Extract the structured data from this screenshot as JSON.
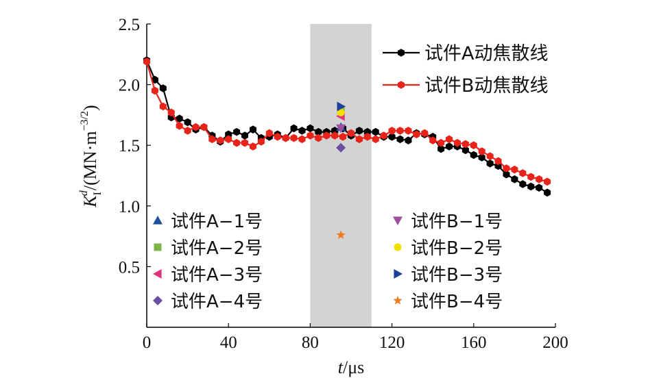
{
  "chart_data": {
    "type": "line",
    "xlabel_italic": "t",
    "xlabel_unit": "/μs",
    "ylabel_main": "K",
    "ylabel_sub": "I",
    "ylabel_sup": "d",
    "ylabel_unit_pre": "/(MN·m",
    "ylabel_unit_exp": "−3/2",
    "ylabel_unit_post": ")",
    "xlim": [
      0,
      200
    ],
    "ylim": [
      0,
      2.5
    ],
    "x_ticks": [
      0,
      40,
      80,
      120,
      160,
      200
    ],
    "y_ticks": [
      0.5,
      1.0,
      1.5,
      2.0,
      2.5
    ],
    "x_tick_labels": [
      "0",
      "40",
      "80",
      "120",
      "160",
      "200"
    ],
    "y_tick_labels": [
      "0.5",
      "1.0",
      "1.5",
      "2.0",
      "2.5"
    ],
    "shaded_band": {
      "x_start": 80,
      "x_end": 110,
      "color": "#d3d3d3"
    },
    "series": [
      {
        "name": "试件A动焦散线",
        "color": "#000000",
        "marker": "hexagon",
        "x": [
          0,
          4,
          8,
          12,
          16,
          20,
          24,
          28,
          32,
          36,
          40,
          44,
          48,
          52,
          56,
          60,
          64,
          68,
          72,
          76,
          80,
          84,
          88,
          92,
          96,
          100,
          104,
          108,
          112,
          116,
          120,
          124,
          128,
          132,
          136,
          140,
          144,
          148,
          152,
          156,
          160,
          164,
          168,
          172,
          176,
          180,
          184,
          188,
          192,
          196
        ],
        "y": [
          2.2,
          2.04,
          1.97,
          1.73,
          1.72,
          1.69,
          1.63,
          1.65,
          1.58,
          1.53,
          1.59,
          1.61,
          1.58,
          1.63,
          1.56,
          1.57,
          1.59,
          1.56,
          1.64,
          1.62,
          1.64,
          1.61,
          1.61,
          1.62,
          1.64,
          1.58,
          1.62,
          1.61,
          1.61,
          1.57,
          1.57,
          1.55,
          1.54,
          1.6,
          1.59,
          1.57,
          1.47,
          1.49,
          1.49,
          1.46,
          1.42,
          1.4,
          1.35,
          1.33,
          1.26,
          1.22,
          1.18,
          1.16,
          1.15,
          1.11
        ]
      },
      {
        "name": "试件B动焦散线",
        "color": "#e8231a",
        "marker": "hexagon",
        "x": [
          0,
          4,
          8,
          12,
          16,
          20,
          24,
          28,
          32,
          36,
          40,
          44,
          48,
          52,
          56,
          60,
          64,
          68,
          72,
          76,
          80,
          84,
          88,
          92,
          96,
          100,
          104,
          108,
          112,
          116,
          120,
          124,
          128,
          132,
          136,
          140,
          144,
          148,
          152,
          156,
          160,
          164,
          168,
          172,
          176,
          180,
          184,
          188,
          192,
          196
        ],
        "y": [
          2.19,
          1.95,
          1.82,
          1.77,
          1.66,
          1.62,
          1.65,
          1.65,
          1.55,
          1.54,
          1.55,
          1.52,
          1.52,
          1.49,
          1.53,
          1.6,
          1.57,
          1.56,
          1.56,
          1.55,
          1.58,
          1.56,
          1.58,
          1.58,
          1.57,
          1.6,
          1.55,
          1.57,
          1.55,
          1.58,
          1.62,
          1.62,
          1.62,
          1.59,
          1.6,
          1.54,
          1.52,
          1.55,
          1.52,
          1.51,
          1.5,
          1.45,
          1.41,
          1.37,
          1.31,
          1.3,
          1.27,
          1.24,
          1.22,
          1.2
        ]
      }
    ],
    "points": [
      {
        "name": "试件A−1号",
        "x": 95,
        "y": 1.65,
        "color": "#1f4e9c",
        "marker": "triangle-up"
      },
      {
        "name": "试件A−2号",
        "x": 95,
        "y": 1.79,
        "color": "#7ab648",
        "marker": "square"
      },
      {
        "name": "试件A−3号",
        "x": 95,
        "y": 1.74,
        "color": "#e0307e",
        "marker": "triangle-left"
      },
      {
        "name": "试件A−4号",
        "x": 95,
        "y": 1.48,
        "color": "#6b4fa0",
        "marker": "diamond"
      },
      {
        "name": "试件B−1号",
        "x": 95,
        "y": 1.64,
        "color": "#9e4f9e",
        "marker": "triangle-down"
      },
      {
        "name": "试件B−2号",
        "x": 95,
        "y": 1.77,
        "color": "#f0e000",
        "marker": "circle"
      },
      {
        "name": "试件B−3号",
        "x": 95,
        "y": 1.82,
        "color": "#1f3f9c",
        "marker": "triangle-right"
      },
      {
        "name": "试件B−4号",
        "x": 95,
        "y": 0.76,
        "color": "#f07a20",
        "marker": "star"
      }
    ],
    "legend_lines_position": "top-right",
    "legend_points_position": "bottom",
    "grid": false
  }
}
